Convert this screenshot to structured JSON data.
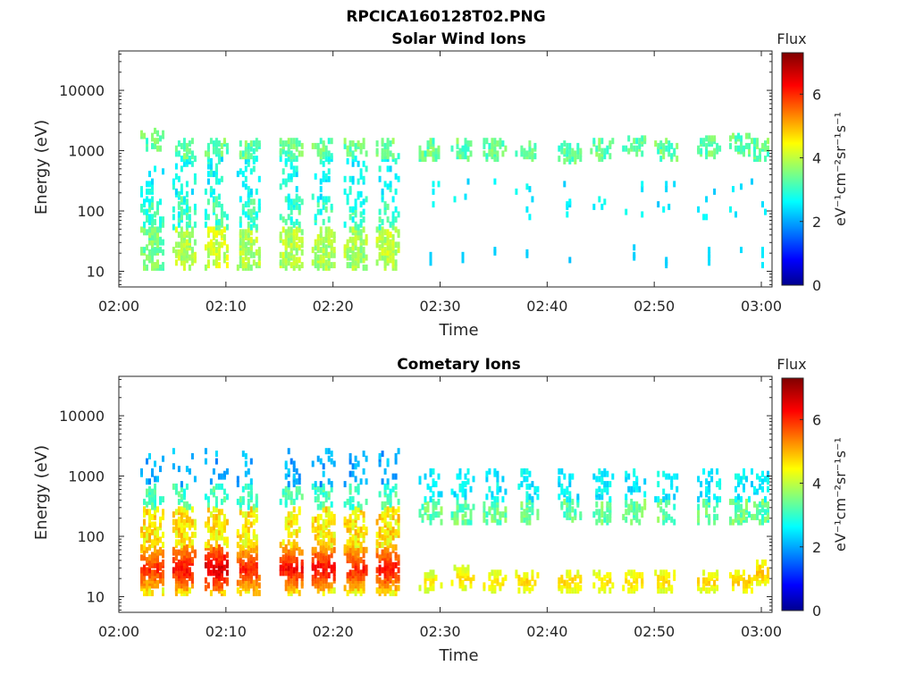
{
  "figure": {
    "title": "RPCICA160128T02.PNG"
  },
  "colormap": {
    "name": "jet",
    "stops": [
      "#00008f",
      "#0000ff",
      "#00ffff",
      "#ffff00",
      "#ff0000",
      "#800000"
    ]
  },
  "chart_data": [
    {
      "type": "heatmap",
      "title": "Solar Wind Ions",
      "xlabel": "Time",
      "ylabel": "Energy (eV)",
      "y_scale": "log",
      "x_range": [
        "02:00",
        "03:01"
      ],
      "y_range": [
        5.5,
        45000
      ],
      "x_ticks": [
        "02:00",
        "02:10",
        "02:20",
        "02:30",
        "02:40",
        "02:50",
        "03:00"
      ],
      "y_ticks": [
        "10",
        "100",
        "1000",
        "10000"
      ],
      "colorbar": {
        "label_top": "Flux",
        "unit_label": "eV⁻¹cm⁻²sr⁻¹s⁻¹",
        "ticks": [
          "0",
          "2",
          "4",
          "6"
        ],
        "range": [
          0,
          7.3
        ]
      },
      "grid": false,
      "sweeps": [
        {
          "t": "02:03",
          "low_flux": 3.2,
          "high_energy_ev": 1500
        },
        {
          "t": "02:06",
          "low_flux": 3.6,
          "high_energy_ev": 1000
        },
        {
          "t": "02:09",
          "low_flux": 3.8,
          "high_energy_ev": 1000
        },
        {
          "t": "02:12",
          "low_flux": 3.6,
          "high_energy_ev": 1000
        },
        {
          "t": "02:16",
          "low_flux": 3.6,
          "high_energy_ev": 1000
        },
        {
          "t": "02:19",
          "low_flux": 3.5,
          "high_energy_ev": 1000
        },
        {
          "t": "02:22",
          "low_flux": 3.5,
          "high_energy_ev": 1000
        },
        {
          "t": "02:25",
          "low_flux": 3.7,
          "high_energy_ev": 1000
        },
        {
          "t": "02:29",
          "low_flux": 2.4,
          "high_energy_ev": 1000
        },
        {
          "t": "02:32",
          "low_flux": 2.4,
          "high_energy_ev": 1000
        },
        {
          "t": "02:35",
          "low_flux": 2.4,
          "high_energy_ev": 1000
        },
        {
          "t": "02:38",
          "low_flux": 2.4,
          "high_energy_ev": 1000
        },
        {
          "t": "02:42",
          "low_flux": 2.3,
          "high_energy_ev": 900
        },
        {
          "t": "02:45",
          "low_flux": 2.4,
          "high_energy_ev": 1000
        },
        {
          "t": "02:48",
          "low_flux": 2.4,
          "high_energy_ev": 1100
        },
        {
          "t": "02:51",
          "low_flux": 2.4,
          "high_energy_ev": 1000
        },
        {
          "t": "02:55",
          "low_flux": 2.5,
          "high_energy_ev": 1100
        },
        {
          "t": "02:58",
          "low_flux": 2.5,
          "high_energy_ev": 1200
        },
        {
          "t": "03:00",
          "low_flux": 2.6,
          "high_energy_ev": 1000
        }
      ]
    },
    {
      "type": "heatmap",
      "title": "Cometary Ions",
      "xlabel": "Time",
      "ylabel": "Energy (eV)",
      "y_scale": "log",
      "x_range": [
        "02:00",
        "03:01"
      ],
      "y_range": [
        5.5,
        45000
      ],
      "x_ticks": [
        "02:00",
        "02:10",
        "02:20",
        "02:30",
        "02:40",
        "02:50",
        "03:00"
      ],
      "y_ticks": [
        "10",
        "100",
        "1000",
        "10000"
      ],
      "colorbar": {
        "label_top": "Flux",
        "unit_label": "eV⁻¹cm⁻²sr⁻¹s⁻¹",
        "ticks": [
          "0",
          "2",
          "4",
          "6"
        ],
        "range": [
          0,
          7.3
        ]
      },
      "grid": false,
      "sweeps": [
        {
          "t": "02:03",
          "peak_flux": 5.9,
          "peak_energy_ev": 30
        },
        {
          "t": "02:06",
          "peak_flux": 6.2,
          "peak_energy_ev": 30
        },
        {
          "t": "02:09",
          "peak_flux": 6.5,
          "peak_energy_ev": 30
        },
        {
          "t": "02:12",
          "peak_flux": 6.0,
          "peak_energy_ev": 30
        },
        {
          "t": "02:16",
          "peak_flux": 6.2,
          "peak_energy_ev": 30
        },
        {
          "t": "02:19",
          "peak_flux": 6.2,
          "peak_energy_ev": 30
        },
        {
          "t": "02:22",
          "peak_flux": 6.0,
          "peak_energy_ev": 30
        },
        {
          "t": "02:25",
          "peak_flux": 6.1,
          "peak_energy_ev": 30
        },
        {
          "t": "02:29",
          "peak_flux": 4.6,
          "peak_energy_ev": 18
        },
        {
          "t": "02:32",
          "peak_flux": 4.8,
          "peak_energy_ev": 20
        },
        {
          "t": "02:35",
          "peak_flux": 4.7,
          "peak_energy_ev": 18
        },
        {
          "t": "02:38",
          "peak_flux": 4.8,
          "peak_energy_ev": 18
        },
        {
          "t": "02:42",
          "peak_flux": 4.8,
          "peak_energy_ev": 18
        },
        {
          "t": "02:45",
          "peak_flux": 4.7,
          "peak_energy_ev": 18
        },
        {
          "t": "02:48",
          "peak_flux": 4.8,
          "peak_energy_ev": 18
        },
        {
          "t": "02:51",
          "peak_flux": 4.8,
          "peak_energy_ev": 18
        },
        {
          "t": "02:55",
          "peak_flux": 4.8,
          "peak_energy_ev": 18
        },
        {
          "t": "02:58",
          "peak_flux": 4.9,
          "peak_energy_ev": 18
        },
        {
          "t": "03:00",
          "peak_flux": 5.0,
          "peak_energy_ev": 25
        }
      ]
    }
  ]
}
